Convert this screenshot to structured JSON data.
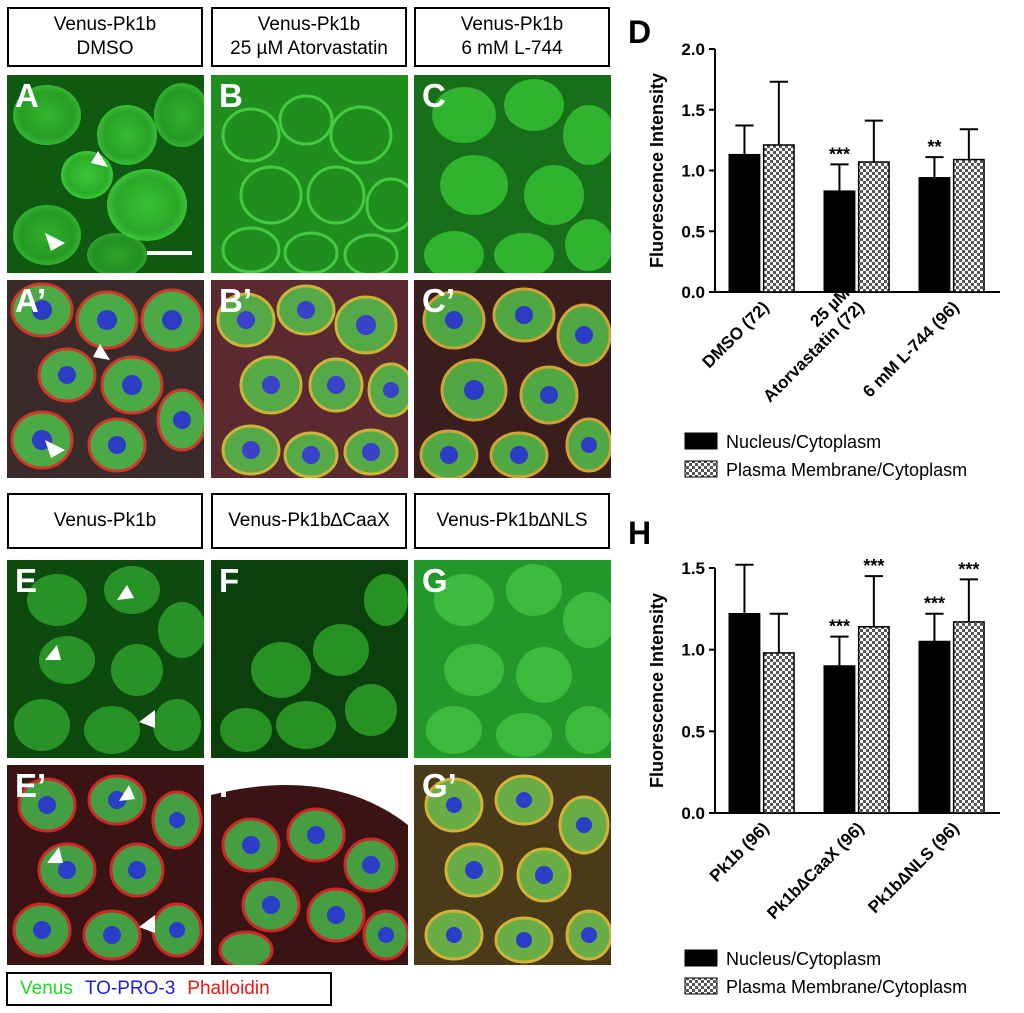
{
  "top_headers": [
    {
      "line1": "Venus-Pk1b",
      "line2": "DMSO"
    },
    {
      "line1": "Venus-Pk1b",
      "line2": "25 µM Atorvastatin"
    },
    {
      "line1": "Venus-Pk1b",
      "line2": "6 mM L-744"
    }
  ],
  "bottom_headers": [
    {
      "line1": "Venus-Pk1b"
    },
    {
      "line1": "Venus-Pk1b∆CaaX"
    },
    {
      "line1": "Venus-Pk1b∆NLS"
    }
  ],
  "panel_labels": {
    "A": "A",
    "B": "B",
    "C": "C",
    "A2": "A’",
    "B2": "B’",
    "C2": "C’",
    "E": "E",
    "F": "F",
    "G": "G",
    "E2": "E’",
    "F2": "F’",
    "G2": "G’"
  },
  "stain_legend": {
    "venus": "Venus",
    "venus_color": "#22d622",
    "topro": "TO-PRO-3",
    "topro_color": "#1f1fd6",
    "phalloidin": "Phalloidin",
    "phalloidin_color": "#e01b1b"
  },
  "chart_data": [
    {
      "panel": "D",
      "type": "bar",
      "ylabel": "Fluorescence Intensity",
      "ylim": [
        0,
        2.0
      ],
      "yticks": [
        "0.0",
        "0.5",
        "1.0",
        "1.5",
        "2.0"
      ],
      "categories": [
        "DMSO (72)",
        "25 µM",
        "6 mM L-744 (96)"
      ],
      "category_sublabels": [
        "",
        "Atorvastatin (72)",
        ""
      ],
      "series": [
        {
          "name": "Nucleus/Cytoplasm",
          "values": [
            1.13,
            0.83,
            0.94
          ],
          "errors": [
            0.24,
            0.22,
            0.17
          ],
          "annotations": [
            "",
            "***",
            "**"
          ]
        },
        {
          "name": "Plasma Membrane/Cytoplasm",
          "values": [
            1.21,
            1.07,
            1.09
          ],
          "errors": [
            0.52,
            0.34,
            0.25
          ],
          "annotations": [
            "",
            "",
            ""
          ]
        }
      ]
    },
    {
      "panel": "H",
      "type": "bar",
      "ylabel": "Fluorescence Intensity",
      "ylim": [
        0,
        1.5
      ],
      "yticks": [
        "0.0",
        "0.5",
        "1.0",
        "1.5"
      ],
      "categories": [
        "Pk1b (96)",
        "Pk1b∆CaaX (96)",
        "Pk1b∆NLS (96)"
      ],
      "category_sublabels": [
        "",
        "",
        ""
      ],
      "series": [
        {
          "name": "Nucleus/Cytoplasm",
          "values": [
            1.22,
            0.9,
            1.05
          ],
          "errors": [
            0.3,
            0.18,
            0.17
          ],
          "annotations": [
            "",
            "***",
            "***"
          ]
        },
        {
          "name": "Plasma Membrane/Cytoplasm",
          "values": [
            0.98,
            1.14,
            1.17
          ],
          "errors": [
            0.24,
            0.31,
            0.26
          ],
          "annotations": [
            "",
            "***",
            "***"
          ]
        }
      ]
    }
  ],
  "chart_letters": {
    "D": "D",
    "H": "H"
  }
}
